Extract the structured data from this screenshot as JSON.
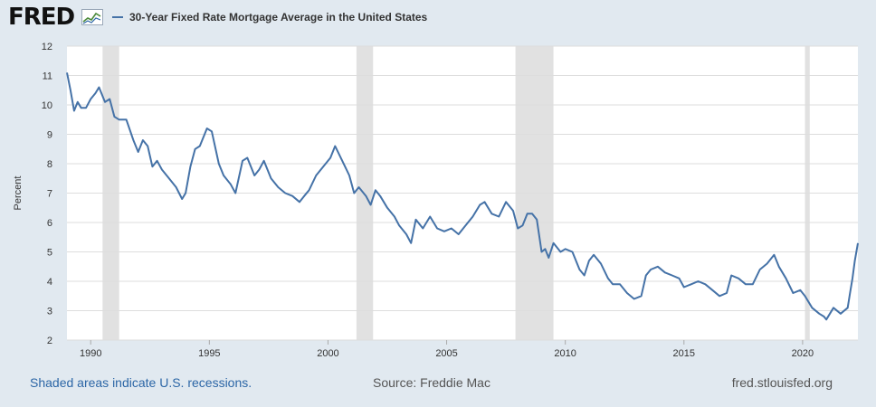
{
  "header": {
    "logo_text": "FRED",
    "series_title": "30-Year Fixed Rate Mortgage Average in the United States"
  },
  "footer": {
    "recession_note": "Shaded areas indicate U.S. recessions.",
    "source": "Source: Freddie Mac",
    "site": "fred.stlouisfed.org"
  },
  "colors": {
    "line": "#4572a7",
    "recession_band": "#e1e1e1",
    "grid": "#dddddd",
    "background": "#e1e9f0"
  },
  "icons": [
    "fred-chart-icon"
  ],
  "chart_data": {
    "type": "line",
    "title": "30-Year Fixed Rate Mortgage Average in the United States",
    "xlabel": "",
    "ylabel": "Percent",
    "ylim": [
      2,
      12
    ],
    "xlim": [
      1989.0,
      2022.33
    ],
    "x_ticks": [
      1990,
      1995,
      2000,
      2005,
      2010,
      2015,
      2020
    ],
    "y_ticks": [
      2,
      3,
      4,
      5,
      6,
      7,
      8,
      9,
      10,
      11,
      12
    ],
    "grid": "horizontal",
    "recessions": [
      [
        1990.5,
        1991.2
      ],
      [
        2001.2,
        2001.9
      ],
      [
        2007.9,
        2009.5
      ],
      [
        2020.1,
        2020.3
      ]
    ],
    "series": [
      {
        "name": "30-Year Fixed Rate Mortgage Average in the United States",
        "x": [
          1989.0,
          1989.15,
          1989.3,
          1989.45,
          1989.6,
          1989.8,
          1990.0,
          1990.2,
          1990.35,
          1990.6,
          1990.8,
          1991.0,
          1991.2,
          1991.5,
          1991.8,
          1992.0,
          1992.2,
          1992.4,
          1992.6,
          1992.8,
          1993.0,
          1993.3,
          1993.6,
          1993.85,
          1994.0,
          1994.2,
          1994.4,
          1994.6,
          1994.9,
          1995.1,
          1995.4,
          1995.6,
          1995.9,
          1996.1,
          1996.4,
          1996.6,
          1996.9,
          1997.1,
          1997.3,
          1997.6,
          1997.9,
          1998.2,
          1998.5,
          1998.8,
          1999.0,
          1999.2,
          1999.5,
          1999.8,
          2000.1,
          2000.3,
          2000.6,
          2000.9,
          2001.1,
          2001.3,
          2001.6,
          2001.8,
          2002.0,
          2002.2,
          2002.5,
          2002.8,
          2003.0,
          2003.3,
          2003.5,
          2003.7,
          2004.0,
          2004.3,
          2004.6,
          2004.9,
          2005.2,
          2005.5,
          2005.8,
          2006.1,
          2006.4,
          2006.6,
          2006.9,
          2007.2,
          2007.5,
          2007.8,
          2008.0,
          2008.2,
          2008.4,
          2008.6,
          2008.8,
          2009.0,
          2009.15,
          2009.3,
          2009.5,
          2009.8,
          2010.0,
          2010.3,
          2010.6,
          2010.8,
          2011.0,
          2011.2,
          2011.5,
          2011.8,
          2012.0,
          2012.3,
          2012.6,
          2012.9,
          2013.2,
          2013.4,
          2013.6,
          2013.9,
          2014.2,
          2014.5,
          2014.8,
          2015.0,
          2015.3,
          2015.6,
          2015.9,
          2016.2,
          2016.5,
          2016.8,
          2017.0,
          2017.3,
          2017.6,
          2017.9,
          2018.2,
          2018.5,
          2018.8,
          2019.0,
          2019.3,
          2019.6,
          2019.9,
          2020.1,
          2020.4,
          2020.7,
          2020.9,
          2021.0,
          2021.3,
          2021.6,
          2021.9,
          2022.0,
          2022.1,
          2022.2,
          2022.33
        ],
        "values": [
          11.1,
          10.5,
          9.8,
          10.1,
          9.9,
          9.9,
          10.2,
          10.4,
          10.6,
          10.1,
          10.2,
          9.6,
          9.5,
          9.5,
          8.8,
          8.4,
          8.8,
          8.6,
          7.9,
          8.1,
          7.8,
          7.5,
          7.2,
          6.8,
          7.0,
          7.9,
          8.5,
          8.6,
          9.2,
          9.1,
          8.0,
          7.6,
          7.3,
          7.0,
          8.1,
          8.2,
          7.6,
          7.8,
          8.1,
          7.5,
          7.2,
          7.0,
          6.9,
          6.7,
          6.9,
          7.1,
          7.6,
          7.9,
          8.2,
          8.6,
          8.1,
          7.6,
          7.0,
          7.2,
          6.9,
          6.6,
          7.1,
          6.9,
          6.5,
          6.2,
          5.9,
          5.6,
          5.3,
          6.1,
          5.8,
          6.2,
          5.8,
          5.7,
          5.8,
          5.6,
          5.9,
          6.2,
          6.6,
          6.7,
          6.3,
          6.2,
          6.7,
          6.4,
          5.8,
          5.9,
          6.3,
          6.3,
          6.1,
          5.0,
          5.1,
          4.8,
          5.3,
          5.0,
          5.1,
          5.0,
          4.4,
          4.2,
          4.7,
          4.9,
          4.6,
          4.1,
          3.9,
          3.9,
          3.6,
          3.4,
          3.5,
          4.2,
          4.4,
          4.5,
          4.3,
          4.2,
          4.1,
          3.8,
          3.9,
          4.0,
          3.9,
          3.7,
          3.5,
          3.6,
          4.2,
          4.1,
          3.9,
          3.9,
          4.4,
          4.6,
          4.9,
          4.5,
          4.1,
          3.6,
          3.7,
          3.5,
          3.1,
          2.9,
          2.8,
          2.7,
          3.1,
          2.9,
          3.1,
          3.6,
          4.1,
          4.7,
          5.3
        ]
      }
    ]
  }
}
